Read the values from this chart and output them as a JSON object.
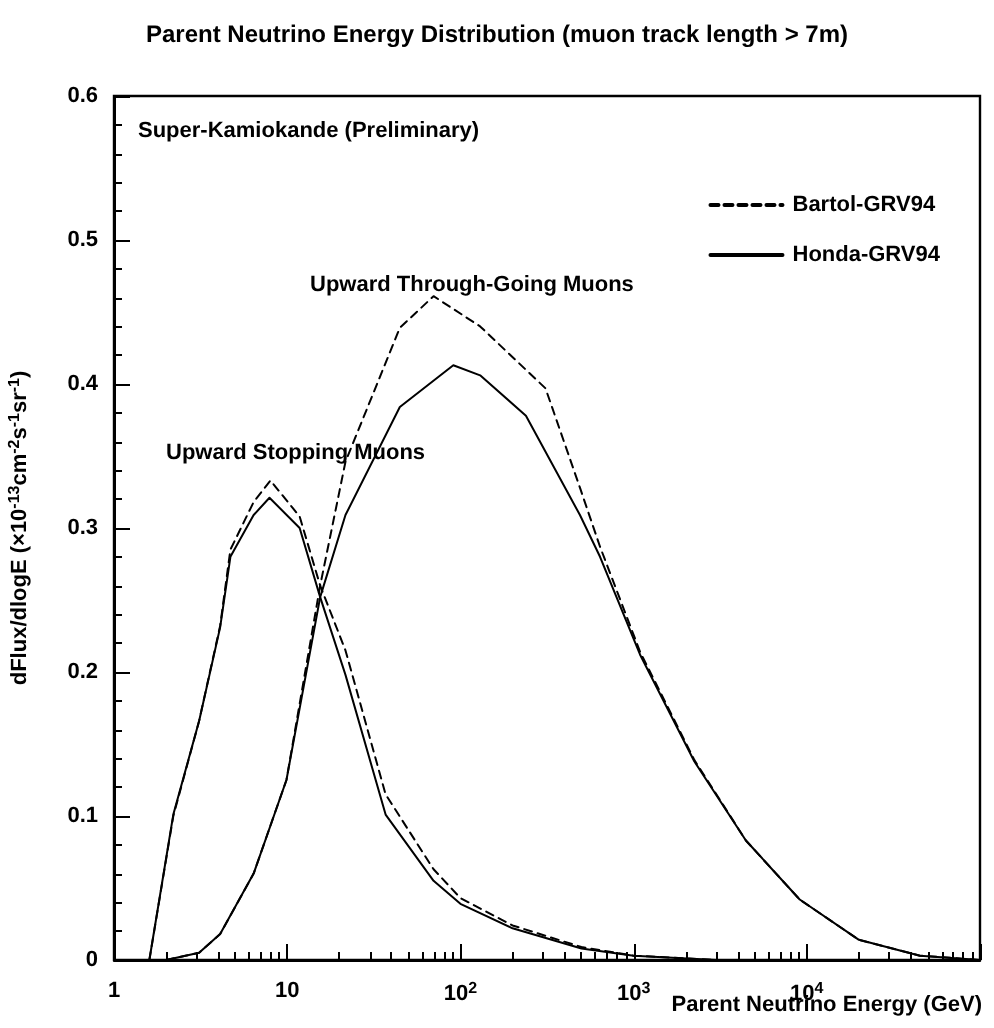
{
  "chart_data": {
    "type": "line",
    "title": "Parent Neutrino Energy Distribution (muon track length > 7m)",
    "xlabel": "Parent Neutrino Energy (GeV)",
    "ylabel": "dFlux/dlogE (×10$^{-13}$cm$^{-2}$s$^{-1}$sr$^{-1}$)",
    "log": "x",
    "xlim": [
      1,
      100000
    ],
    "xticks": [
      1,
      10,
      {
        "value": 100,
        "label": "10$^{2}$"
      },
      {
        "value": 1000,
        "label": "10$^{3}$"
      },
      {
        "value": 10000,
        "label": "10$^{4}$"
      },
      {
        "value": 100000,
        "label": null
      }
    ],
    "ylim": [
      0,
      0.6
    ],
    "yticks": [
      0,
      0.1,
      0.2,
      0.3,
      0.4,
      0.5,
      0.6
    ],
    "grid": false,
    "legend": "top right",
    "marker": "none",
    "annotations": [
      "Super-Kamiokande (Preliminary)",
      "Upward Through-Going Muons",
      "Upward Stopping Muons"
    ],
    "series": [
      {
        "name": "Bartol-GRV94",
        "color": "#000000",
        "line_style": "dashed",
        "x": [
          1.6,
          2.2,
          3.1,
          4.1,
          4.7,
          6.4,
          8,
          11.8,
          15.5,
          21.7,
          37,
          70,
          100,
          200,
          500,
          1000,
          3000
        ],
        "values": [
          0,
          0.1,
          0.166,
          0.232,
          0.285,
          0.318,
          0.333,
          0.308,
          0.26,
          0.215,
          0.115,
          0.063,
          0.043,
          0.024,
          0.009,
          0.003,
          0
        ]
      },
      {
        "name": "Honda-GRV94",
        "color": "#000000",
        "line_style": "solid",
        "x": [
          1.6,
          2.2,
          3.1,
          4.1,
          4.7,
          6.4,
          7.9,
          11.8,
          15.5,
          21.7,
          37,
          70,
          100,
          200,
          500,
          1000,
          3000
        ],
        "values": [
          0,
          0.101,
          0.166,
          0.231,
          0.28,
          0.309,
          0.321,
          0.3,
          0.252,
          0.198,
          0.101,
          0.055,
          0.039,
          0.022,
          0.008,
          0.003,
          0
        ]
      },
      {
        "color": "#000000",
        "line_style": "dashed",
        "x": [
          2,
          3.1,
          4.1,
          6.4,
          9.9,
          15.5,
          21.7,
          44.7,
          70,
          130,
          310,
          490,
          640,
          1090,
          2240,
          4450,
          9100,
          20000,
          45000,
          100000
        ],
        "values": [
          0,
          0.005,
          0.018,
          0.06,
          0.125,
          0.26,
          0.346,
          0.439,
          0.461,
          0.44,
          0.397,
          0.328,
          0.287,
          0.214,
          0.139,
          0.083,
          0.042,
          0.014,
          0.003,
          0
        ]
      },
      {
        "color": "#000000",
        "line_style": "solid",
        "x": [
          2,
          3.1,
          4.1,
          6.4,
          9.9,
          15.5,
          21.7,
          44.7,
          91,
          130,
          239,
          490,
          640,
          1090,
          2240,
          4450,
          9100,
          20000,
          45000,
          100000
        ],
        "values": [
          0,
          0.005,
          0.018,
          0.06,
          0.125,
          0.252,
          0.309,
          0.384,
          0.413,
          0.406,
          0.378,
          0.309,
          0.28,
          0.212,
          0.138,
          0.083,
          0.042,
          0.014,
          0.003,
          0
        ]
      }
    ]
  }
}
